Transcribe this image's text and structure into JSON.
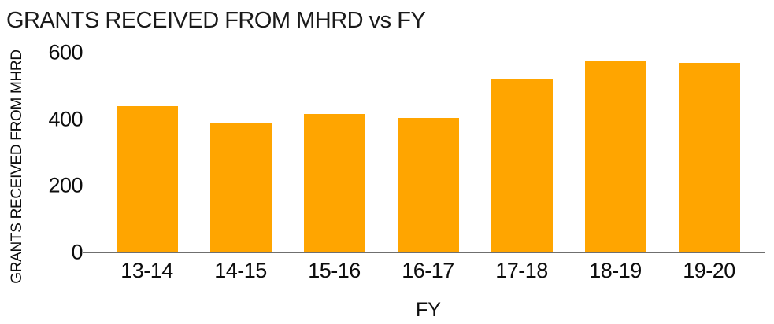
{
  "chart_data": {
    "type": "bar",
    "title": "GRANTS RECEIVED FROM MHRD vs FY",
    "xlabel": "FY",
    "ylabel": "GRANTS RECEIVED FROM MHRD",
    "categories": [
      "13-14",
      "14-15",
      "15-16",
      "16-17",
      "17-18",
      "18-19",
      "19-20"
    ],
    "values": [
      440,
      390,
      415,
      405,
      520,
      575,
      570
    ],
    "yticks": [
      0,
      200,
      400,
      600
    ],
    "ylim": [
      0,
      600
    ],
    "grid": false,
    "legend": false,
    "bar_color": "#FFA500",
    "axis_line_color": "#6f6f6f",
    "text_color": "#0d0d0d"
  }
}
